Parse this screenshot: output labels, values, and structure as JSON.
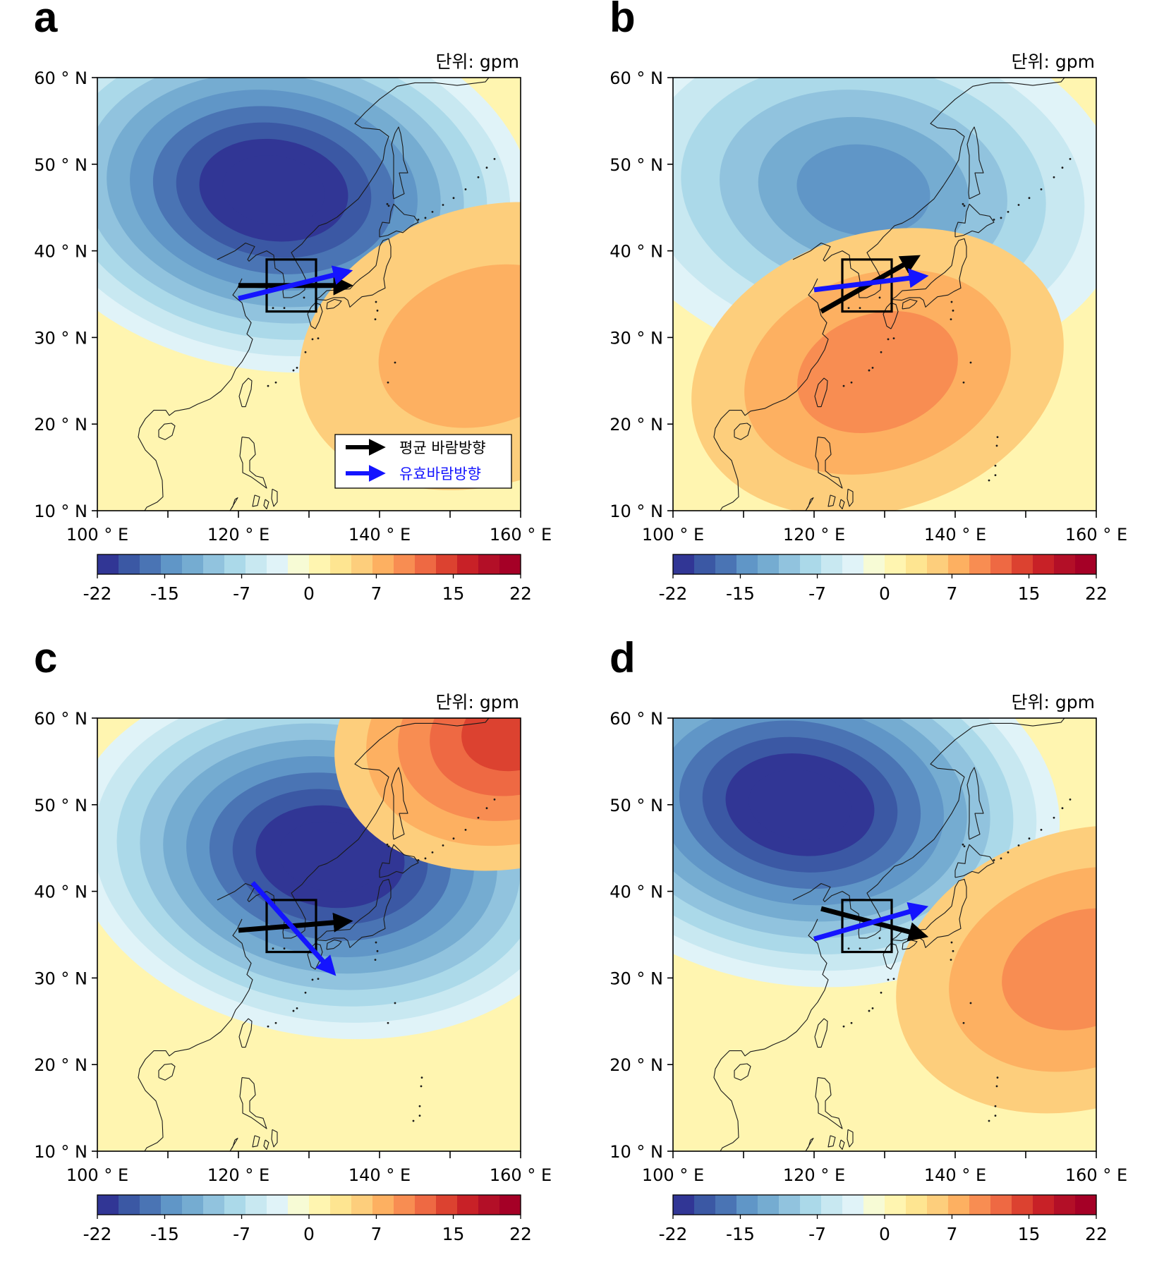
{
  "unit_label": "단위: gpm",
  "x_ticks": [
    {
      "value": 100,
      "label": "100 ° E"
    },
    {
      "value": 120,
      "label": "120 ° E"
    },
    {
      "value": 140,
      "label": "140 ° E"
    },
    {
      "value": 160,
      "label": "160 ° E"
    }
  ],
  "y_ticks": [
    {
      "value": 60,
      "label": "60 ° N"
    },
    {
      "value": 50,
      "label": "50 ° N"
    },
    {
      "value": 40,
      "label": "40 ° N"
    },
    {
      "value": 30,
      "label": "30 ° N"
    },
    {
      "value": 20,
      "label": "20 ° N"
    },
    {
      "value": 10,
      "label": "10 ° N"
    }
  ],
  "extent": {
    "lon": [
      100,
      160
    ],
    "lat": [
      10,
      60
    ]
  },
  "colorbar": {
    "min": -22,
    "max": 22,
    "tick_values": [
      -22,
      -15,
      -7,
      0,
      7,
      15,
      22
    ],
    "tick_labels": [
      "-22",
      "-15",
      "-7",
      "0",
      "7",
      "15",
      "22"
    ],
    "colors": [
      "#313695",
      "#3b58a4",
      "#4a74b4",
      "#6096c7",
      "#75acd1",
      "#91c3de",
      "#abd9e9",
      "#c8e8f1",
      "#e0f3f8",
      "#f7fbd5",
      "#fff5b0",
      "#fee591",
      "#fdce7c",
      "#fdb061",
      "#f88d52",
      "#ee6943",
      "#dc4230",
      "#c82127",
      "#b30f27",
      "#a50026"
    ]
  },
  "box_region": {
    "lon": [
      124,
      131
    ],
    "lat": [
      33,
      39
    ]
  },
  "legend": {
    "mean_wind_label": "평균 바람방향",
    "effective_wind_label": "유효바람방향",
    "mean_wind_color": "#000000",
    "effective_wind_color": "#1414ff"
  },
  "panels": [
    {
      "label": "a",
      "anomaly_centers": [
        {
          "sign": "negative",
          "lon": 125,
          "lat": 47,
          "min": -22
        },
        {
          "sign": "positive",
          "lon": 155,
          "lat": 29,
          "max": 7
        }
      ],
      "arrows": [
        {
          "type": "mean",
          "from": [
            120,
            36
          ],
          "to": [
            135,
            36
          ]
        },
        {
          "type": "effective",
          "from": [
            120,
            34.5
          ],
          "to": [
            135,
            37.5
          ]
        }
      ],
      "show_legend": true
    },
    {
      "label": "b",
      "anomaly_centers": [
        {
          "sign": "negative",
          "lon": 127,
          "lat": 47,
          "min": -15
        },
        {
          "sign": "positive",
          "lon": 129,
          "lat": 26,
          "max": 10
        }
      ],
      "arrows": [
        {
          "type": "mean",
          "from": [
            121,
            33
          ],
          "to": [
            134,
            39
          ]
        },
        {
          "type": "effective",
          "from": [
            120,
            35.5
          ],
          "to": [
            135,
            37
          ]
        }
      ],
      "show_legend": false
    },
    {
      "label": "c",
      "anomaly_centers": [
        {
          "sign": "negative",
          "lon": 133,
          "lat": 44,
          "min": -22
        },
        {
          "sign": "positive",
          "lon": 160,
          "lat": 59,
          "max": 15
        }
      ],
      "arrows": [
        {
          "type": "mean",
          "from": [
            120,
            35.5
          ],
          "to": [
            135,
            36.5
          ]
        },
        {
          "type": "effective",
          "from": [
            122,
            41
          ],
          "to": [
            133,
            31
          ]
        }
      ],
      "show_legend": false
    },
    {
      "label": "d",
      "anomaly_centers": [
        {
          "sign": "negative",
          "lon": 118,
          "lat": 50,
          "min": -22
        },
        {
          "sign": "positive",
          "lon": 158,
          "lat": 31,
          "max": 10
        }
      ],
      "arrows": [
        {
          "type": "mean",
          "from": [
            121,
            38
          ],
          "to": [
            135,
            35
          ]
        },
        {
          "type": "effective",
          "from": [
            120,
            34.5
          ],
          "to": [
            135,
            38
          ]
        }
      ],
      "show_legend": false
    }
  ]
}
